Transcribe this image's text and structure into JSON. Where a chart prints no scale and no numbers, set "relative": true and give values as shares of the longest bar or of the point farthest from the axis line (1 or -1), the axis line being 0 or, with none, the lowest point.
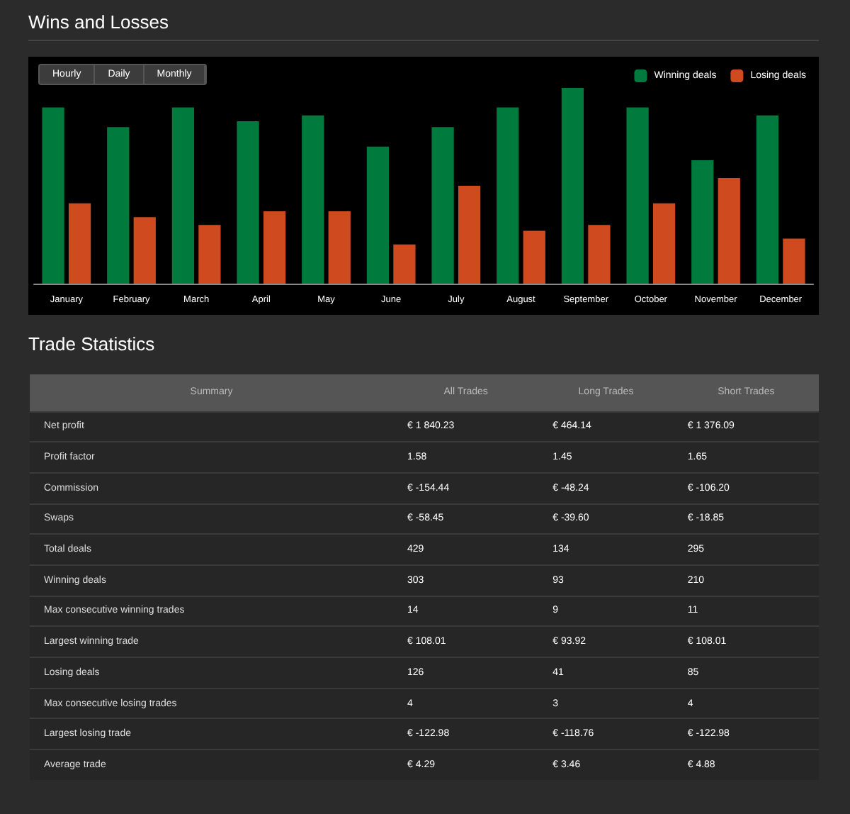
{
  "chart_data": [
    {
      "type": "bar",
      "title": "Wins and Losses",
      "relative": true,
      "legend": "top right",
      "annotations": [
        "Hourly",
        "Daily",
        "Monthly"
      ],
      "categories": [
        "January",
        "February",
        "March",
        "April",
        "May",
        "June",
        "July",
        "August",
        "September",
        "October",
        "November",
        "December"
      ],
      "series": [
        {
          "name": "Winning deals",
          "color": "#007a3d",
          "values": [
            0.9,
            0.8,
            0.9,
            0.83,
            0.86,
            0.7,
            0.8,
            0.9,
            1,
            0.9,
            0.63,
            0.86
          ]
        },
        {
          "name": "Losing deals",
          "color": "#d04a1f",
          "values": [
            0.41,
            0.34,
            0.3,
            0.37,
            0.37,
            0.2,
            0.5,
            0.27,
            0.3,
            0.41,
            0.54,
            0.23
          ]
        }
      ]
    },
    {
      "type": "other",
      "title": "Trade Statistics",
      "categories": [
        "Summary",
        "All Trades",
        "Long Trades",
        "Short Trades"
      ],
      "annotations": [
        "Net profit",
        "€ 1 840.23",
        "€ 464.14",
        "€ 1 376.09",
        "Profit factor",
        "1.58",
        "1.45",
        "1.65",
        "Commission",
        "€ -154.44",
        "€ -48.24",
        "€ -106.20",
        "Swaps",
        "€ -58.45",
        "€ -39.60",
        "€ -18.85",
        "Total deals",
        "429",
        "134",
        "295",
        "Winning deals",
        "303",
        "93",
        "210",
        "Max consecutive winning trades",
        "14",
        "9",
        "11",
        "Largest winning trade",
        "€ 108.01",
        "€ 93.92",
        "€ 108.01",
        "Losing deals",
        "126",
        "41",
        "85",
        "Max consecutive losing trades",
        "4",
        "3",
        "4",
        "Largest losing trade",
        "€ -122.98",
        "€ -118.76",
        "€ -122.98",
        "Average trade",
        "€ 4.29",
        "€ 3.46",
        "€ 4.88"
      ]
    }
  ]
}
